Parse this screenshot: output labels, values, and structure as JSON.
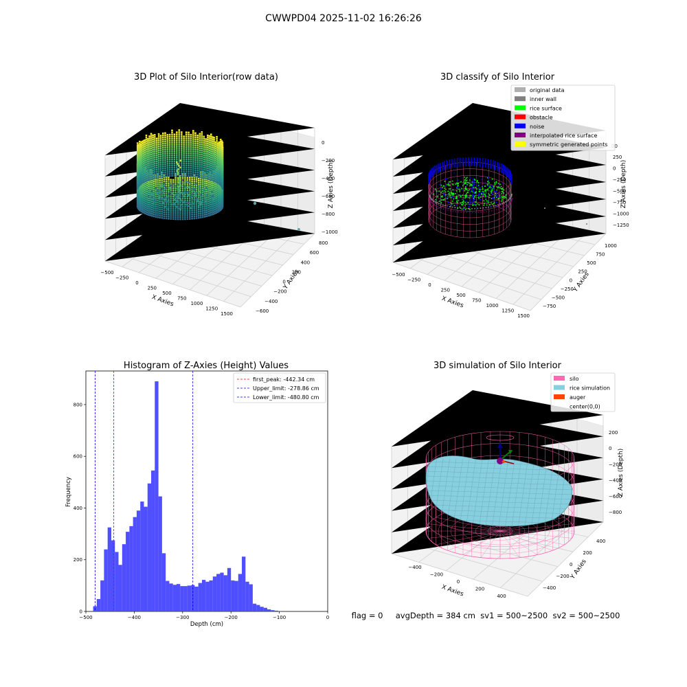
{
  "suptitle": "CWWPD04 2025-11-02 16:26:26",
  "footer": "flag = 0     avgDepth = 384 cm  sv1 = 500~2500  sv2 = 500~2500",
  "colors": {
    "silo": "#ff69b4",
    "rice": "#87cedf",
    "auger": "#ff4500",
    "hist": "#4040ff",
    "noise": "#0000ee",
    "rice_surface": "#00ff00",
    "obstacle": "#ff0000",
    "interp": "#800080",
    "symmetric": "#ffff00",
    "original": "#b0b0b0",
    "inner_wall": "#808080"
  },
  "chart_data": [
    {
      "type": "scatter3d",
      "title": "3D Plot of Silo Interior(row data)",
      "xlabel": "X Axies",
      "ylabel": "Y Axies",
      "zlabel": "Z Axies (Depth)",
      "x_ticks": [
        "−500",
        "−250",
        "0",
        "250",
        "500",
        "750",
        "1000",
        "1250",
        "1500"
      ],
      "y_ticks": [
        "−600",
        "−400",
        "−200",
        "0",
        "200",
        "400",
        "600",
        "800"
      ],
      "z_ticks": [
        "0",
        "−200",
        "−400",
        "−600",
        "−800",
        "−1000"
      ],
      "outliers": [
        {
          "x": 1150,
          "y": 300,
          "z": -700
        },
        {
          "x": 1450,
          "y": -500,
          "z": -950
        }
      ]
    },
    {
      "type": "scatter3d",
      "title": "3D classify of Silo Interior",
      "xlabel": "X Axies",
      "ylabel": "Y Axies",
      "zlabel": "Z Axies (Depth)",
      "x_ticks": [
        "−500",
        "−250",
        "0",
        "250",
        "500",
        "750",
        "1000",
        "1250",
        "1500"
      ],
      "y_ticks": [
        "−750",
        "−500",
        "−250",
        "0",
        "250",
        "500",
        "750",
        "1000"
      ],
      "z_ticks": [
        "250",
        "0",
        "−250",
        "−500",
        "−750",
        "−1000",
        "−1250"
      ],
      "legend": [
        {
          "label": "original data",
          "color": "#b0b0b0"
        },
        {
          "label": "inner wall",
          "color": "#808080"
        },
        {
          "label": "rice surface",
          "color": "#00ff00"
        },
        {
          "label": "obstacle",
          "color": "#ff0000"
        },
        {
          "label": "noise",
          "color": "#0000ee"
        },
        {
          "label": "interpolated rice surface",
          "color": "#800080"
        },
        {
          "label": "symmetric generated points",
          "color": "#ffff00"
        }
      ],
      "legend_position": "top-right",
      "z_partial_tick": "00"
    },
    {
      "type": "bar",
      "title": "Histogram of Z-Axies (Height) Values",
      "xlabel": "Depth (cm)",
      "ylabel": "Frequency",
      "bin_start": -485,
      "bin_width": 7.5,
      "values": [
        20,
        48,
        120,
        240,
        325,
        275,
        230,
        180,
        260,
        308,
        330,
        365,
        390,
        425,
        405,
        495,
        545,
        890,
        445,
        225,
        118,
        108,
        103,
        106,
        98,
        98,
        100,
        102,
        96,
        110,
        122,
        115,
        120,
        135,
        145,
        150,
        140,
        168,
        120,
        118,
        145,
        212,
        115,
        105,
        30,
        25,
        18,
        14,
        8,
        5,
        3,
        1
      ],
      "xlim": [
        -500,
        0
      ],
      "ylim": [
        0,
        930
      ],
      "x_ticks": [
        "−500",
        "−400",
        "−300",
        "−200",
        "−100",
        "0"
      ],
      "y_ticks": [
        "0",
        "200",
        "400",
        "600",
        "800"
      ],
      "vlines": [
        {
          "label": "first_peak: -442.34 cm",
          "value": -442.34,
          "color": "#ff0000"
        },
        {
          "label": "Upper_limit: -278.86 cm",
          "value": -278.86,
          "color": "#0000ff"
        },
        {
          "label": "Lower_limit: -480.80 cm",
          "value": -480.8,
          "color": "#0000ff"
        }
      ],
      "legend_position": "top-right"
    },
    {
      "type": "surface3d",
      "title": "3D simulation of Silo Interior",
      "xlabel": "X Axies",
      "ylabel": "Y Axies",
      "zlabel": "Z Axies (Depth)",
      "x_ticks": [
        "−400",
        "−200",
        "0",
        "200",
        "400"
      ],
      "y_ticks": [
        "−400",
        "−200",
        "0",
        "200",
        "400"
      ],
      "z_ticks": [
        "200",
        "0",
        "−200",
        "−400",
        "−600",
        "−800"
      ],
      "legend": [
        {
          "label": "silo",
          "color": "#ff69b4"
        },
        {
          "label": "rice simulation",
          "color": "#87cedf"
        },
        {
          "label": "auger",
          "color": "#ff4500"
        },
        {
          "label": "center(0,0)",
          "color": ""
        }
      ],
      "legend_position": "top-right"
    }
  ]
}
